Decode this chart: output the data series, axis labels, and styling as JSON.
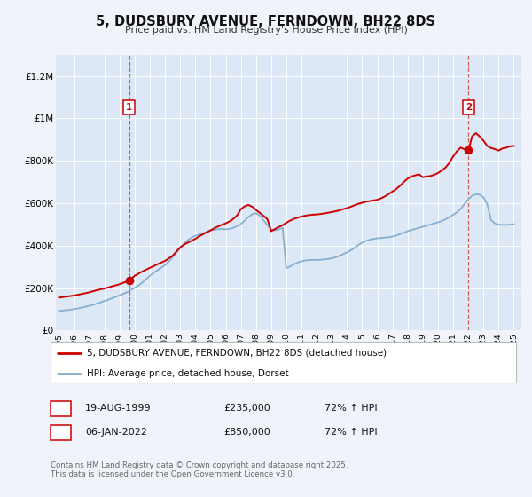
{
  "title": "5, DUDSBURY AVENUE, FERNDOWN, BH22 8DS",
  "subtitle": "Price paid vs. HM Land Registry's House Price Index (HPI)",
  "background_color": "#f0f4fa",
  "plot_bg_color": "#dce8f5",
  "grid_color": "#ffffff",
  "ylim": [
    0,
    1300000
  ],
  "xlim_start": 1994.8,
  "xlim_end": 2025.5,
  "yticks": [
    0,
    200000,
    400000,
    600000,
    800000,
    1000000,
    1200000
  ],
  "ytick_labels": [
    "£0",
    "£200K",
    "£400K",
    "£600K",
    "£800K",
    "£1M",
    "£1.2M"
  ],
  "xticks": [
    1995,
    1996,
    1997,
    1998,
    1999,
    2000,
    2001,
    2002,
    2003,
    2004,
    2005,
    2006,
    2007,
    2008,
    2009,
    2010,
    2011,
    2012,
    2013,
    2014,
    2015,
    2016,
    2017,
    2018,
    2019,
    2020,
    2021,
    2022,
    2023,
    2024,
    2025
  ],
  "sale1_x": 1999.63,
  "sale1_y": 235000,
  "sale2_x": 2022.02,
  "sale2_y": 850000,
  "red_line_color": "#cc0000",
  "blue_line_color": "#88afd0",
  "point_color": "#cc0000",
  "vline_color": "#cc4444",
  "legend_label_red": "5, DUDSBURY AVENUE, FERNDOWN, BH22 8DS (detached house)",
  "legend_label_blue": "HPI: Average price, detached house, Dorset",
  "table_row1": [
    "1",
    "19-AUG-1999",
    "£235,000",
    "72% ↑ HPI"
  ],
  "table_row2": [
    "2",
    "06-JAN-2022",
    "£850,000",
    "72% ↑ HPI"
  ],
  "footnote": "Contains HM Land Registry data © Crown copyright and database right 2025.\nThis data is licensed under the Open Government Licence v3.0.",
  "hpi_x": [
    1995.0,
    1995.25,
    1995.5,
    1995.75,
    1996.0,
    1996.25,
    1996.5,
    1996.75,
    1997.0,
    1997.25,
    1997.5,
    1997.75,
    1998.0,
    1998.25,
    1998.5,
    1998.75,
    1999.0,
    1999.25,
    1999.5,
    1999.75,
    2000.0,
    2000.25,
    2000.5,
    2000.75,
    2001.0,
    2001.25,
    2001.5,
    2001.75,
    2002.0,
    2002.25,
    2002.5,
    2002.75,
    2003.0,
    2003.25,
    2003.5,
    2003.75,
    2004.0,
    2004.25,
    2004.5,
    2004.75,
    2005.0,
    2005.25,
    2005.5,
    2005.75,
    2006.0,
    2006.25,
    2006.5,
    2006.75,
    2007.0,
    2007.25,
    2007.5,
    2007.75,
    2008.0,
    2008.25,
    2008.5,
    2008.75,
    2009.0,
    2009.25,
    2009.5,
    2009.75,
    2010.0,
    2010.25,
    2010.5,
    2010.75,
    2011.0,
    2011.25,
    2011.5,
    2011.75,
    2012.0,
    2012.25,
    2012.5,
    2012.75,
    2013.0,
    2013.25,
    2013.5,
    2013.75,
    2014.0,
    2014.25,
    2014.5,
    2014.75,
    2015.0,
    2015.25,
    2015.5,
    2015.75,
    2016.0,
    2016.25,
    2016.5,
    2016.75,
    2017.0,
    2017.25,
    2017.5,
    2017.75,
    2018.0,
    2018.25,
    2018.5,
    2018.75,
    2019.0,
    2019.25,
    2019.5,
    2019.75,
    2020.0,
    2020.25,
    2020.5,
    2020.75,
    2021.0,
    2021.25,
    2021.5,
    2021.75,
    2022.0,
    2022.25,
    2022.5,
    2022.75,
    2023.0,
    2023.25,
    2023.5,
    2023.75,
    2024.0,
    2024.25,
    2024.5,
    2024.75,
    2025.0
  ],
  "hpi_y": [
    92000,
    94000,
    96000,
    98000,
    101000,
    104000,
    108000,
    112000,
    116000,
    121000,
    127000,
    133000,
    139000,
    145000,
    152000,
    159000,
    166000,
    173000,
    181000,
    191000,
    201000,
    212000,
    226000,
    242000,
    258000,
    272000,
    284000,
    296000,
    308000,
    325000,
    346000,
    367000,
    388000,
    410000,
    426000,
    438000,
    446000,
    452000,
    458000,
    465000,
    471000,
    475000,
    478000,
    478000,
    477000,
    479000,
    484000,
    492000,
    502000,
    518000,
    535000,
    548000,
    553000,
    542000,
    520000,
    495000,
    476000,
    472000,
    476000,
    484000,
    293000,
    302000,
    312000,
    320000,
    326000,
    330000,
    332000,
    333000,
    332000,
    333000,
    335000,
    337000,
    340000,
    345000,
    352000,
    360000,
    368000,
    378000,
    390000,
    403000,
    414000,
    422000,
    428000,
    432000,
    434000,
    436000,
    438000,
    440000,
    443000,
    448000,
    454000,
    461000,
    468000,
    474000,
    479000,
    484000,
    489000,
    494000,
    499000,
    505000,
    510000,
    516000,
    524000,
    534000,
    545000,
    557000,
    573000,
    596000,
    618000,
    635000,
    642000,
    640000,
    628000,
    595000,
    520000,
    505000,
    499000,
    498000,
    498000,
    499000,
    501000
  ],
  "red_x": [
    1995.0,
    1995.5,
    1996.0,
    1996.5,
    1997.0,
    1997.5,
    1998.0,
    1998.5,
    1999.0,
    1999.63,
    2000.0,
    2000.5,
    2001.0,
    2001.5,
    2002.0,
    2002.5,
    2003.0,
    2003.33,
    2003.67,
    2004.0,
    2004.33,
    2004.67,
    2005.0,
    2005.33,
    2005.67,
    2006.0,
    2006.25,
    2006.5,
    2006.75,
    2007.0,
    2007.25,
    2007.5,
    2007.83,
    2008.0,
    2008.25,
    2008.5,
    2008.75,
    2009.0,
    2009.25,
    2009.5,
    2009.75,
    2010.0,
    2010.25,
    2010.5,
    2010.75,
    2011.0,
    2011.25,
    2011.5,
    2011.75,
    2012.0,
    2012.25,
    2012.5,
    2012.75,
    2013.0,
    2013.25,
    2013.5,
    2013.75,
    2014.0,
    2014.25,
    2014.5,
    2014.75,
    2015.0,
    2015.25,
    2015.5,
    2015.75,
    2016.0,
    2016.25,
    2016.5,
    2016.75,
    2017.0,
    2017.25,
    2017.5,
    2017.75,
    2018.0,
    2018.25,
    2018.5,
    2018.75,
    2019.0,
    2019.25,
    2019.5,
    2019.75,
    2020.0,
    2020.25,
    2020.5,
    2020.75,
    2021.0,
    2021.25,
    2021.5,
    2021.75,
    2022.02,
    2022.25,
    2022.5,
    2022.75,
    2023.0,
    2023.25,
    2023.5,
    2023.75,
    2024.0,
    2024.25,
    2024.5,
    2024.75,
    2025.0
  ],
  "red_y": [
    155000,
    160000,
    165000,
    172000,
    180000,
    190000,
    198000,
    208000,
    218000,
    235000,
    258000,
    278000,
    295000,
    312000,
    328000,
    352000,
    392000,
    408000,
    420000,
    432000,
    447000,
    460000,
    472000,
    485000,
    496000,
    505000,
    514000,
    526000,
    542000,
    572000,
    585000,
    592000,
    580000,
    568000,
    555000,
    540000,
    525000,
    468000,
    478000,
    488000,
    496000,
    508000,
    518000,
    526000,
    532000,
    537000,
    541000,
    544000,
    546000,
    547000,
    549000,
    552000,
    555000,
    558000,
    562000,
    566000,
    572000,
    577000,
    583000,
    590000,
    597000,
    602000,
    607000,
    610000,
    613000,
    616000,
    623000,
    632000,
    643000,
    655000,
    667000,
    682000,
    700000,
    716000,
    726000,
    731000,
    736000,
    722000,
    726000,
    728000,
    734000,
    742000,
    754000,
    768000,
    790000,
    820000,
    845000,
    862000,
    854000,
    850000,
    915000,
    930000,
    915000,
    895000,
    870000,
    860000,
    855000,
    848000,
    858000,
    862000,
    868000,
    870000
  ]
}
